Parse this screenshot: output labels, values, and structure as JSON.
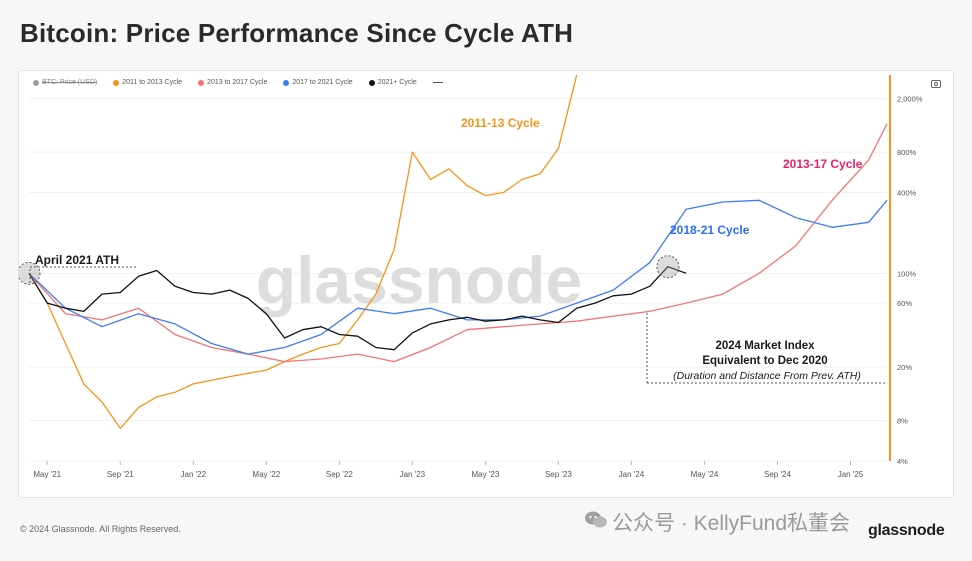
{
  "title": "Bitcoin: Price Performance Since Cycle ATH",
  "legend": [
    {
      "label": "BTC: Price (USD)",
      "color": "#9e9e9e",
      "muted": true
    },
    {
      "label": "2011 to 2013 Cycle",
      "color": "#f7931a"
    },
    {
      "label": "2013 to 2017 Cycle",
      "color": "#f57373"
    },
    {
      "label": "2017 to 2021 Cycle",
      "color": "#3d7cf5"
    },
    {
      "label": "2021+ Cycle",
      "color": "#111111"
    }
  ],
  "footer": {
    "copyright": "© 2024 Glassnode. All Rights Reserved.",
    "brand": "glassnode",
    "watermark_text": "公众号 · KellyFund私董会",
    "watermark_icon": "wechat-icon"
  },
  "chart_data": {
    "type": "line",
    "watermark": "glassnode",
    "x_axis": {
      "ticks": [
        "May '21",
        "Sep '21",
        "Jan '22",
        "May '22",
        "Sep '22",
        "Jan '23",
        "May '23",
        "Sep '23",
        "Jan '24",
        "May '24",
        "Sep '24",
        "Jan '25"
      ],
      "range": [
        "Apr '21",
        "Mar '25"
      ]
    },
    "y_axis": {
      "scale": "log",
      "unit": "%",
      "ticks": [
        "2,000%",
        "800%",
        "400%",
        "100%",
        "60%",
        "20%",
        "8%",
        "4%"
      ],
      "range": [
        4,
        3000
      ]
    },
    "annotations": {
      "ath": "April 2021 ATH",
      "market_index_line1": "2024 Market Index",
      "market_index_line2": "Equivalent to Dec 2020",
      "market_index_line3": "(Duration and Distance From Prev. ATH)",
      "cycle_2011": "2011-13 Cycle",
      "cycle_2013": "2013-17 Cycle",
      "cycle_2018": "2018-21 Cycle"
    },
    "grid": true,
    "legend_position": "top-left",
    "series": [
      {
        "name": "2011 to 2013 Cycle",
        "color": "#f7931a",
        "x": [
          "Apr '21",
          "May '21",
          "Jun '21",
          "Jul '21",
          "Aug '21",
          "Sep '21",
          "Oct '21",
          "Nov '21",
          "Dec '21",
          "Jan '22",
          "Feb '22",
          "Mar '22",
          "Apr '22",
          "May '22",
          "Jun '22",
          "Jul '22",
          "Aug '22",
          "Sep '22",
          "Oct '22",
          "Nov '22",
          "Dec '22",
          "Jan '23",
          "Feb '23",
          "Mar '23",
          "Apr '23",
          "May '23",
          "Jun '23",
          "Jul '23",
          "Aug '23",
          "Sep '23",
          "Oct '23"
        ],
        "values": [
          100,
          60,
          30,
          15,
          11,
          7,
          10,
          12,
          13,
          15,
          16,
          17,
          18,
          19,
          22,
          25,
          28,
          30,
          45,
          70,
          150,
          800,
          500,
          600,
          450,
          380,
          400,
          500,
          550,
          850,
          3000
        ]
      },
      {
        "name": "2013 to 2017 Cycle",
        "color": "#f57373",
        "x": [
          "Apr '21",
          "Jun '21",
          "Aug '21",
          "Oct '21",
          "Dec '21",
          "Feb '22",
          "Apr '22",
          "Jun '22",
          "Aug '22",
          "Oct '22",
          "Dec '22",
          "Feb '23",
          "Apr '23",
          "Jun '23",
          "Aug '23",
          "Oct '23",
          "Dec '23",
          "Feb '24",
          "Apr '24",
          "Jun '24",
          "Aug '24",
          "Oct '24",
          "Dec '24",
          "Feb '25",
          "Mar '25"
        ],
        "values": [
          100,
          50,
          45,
          55,
          35,
          28,
          25,
          22,
          23,
          25,
          22,
          28,
          38,
          40,
          42,
          44,
          48,
          52,
          60,
          70,
          100,
          160,
          350,
          700,
          1300
        ]
      },
      {
        "name": "2017 to 2021 Cycle",
        "color": "#3d7cf5",
        "x": [
          "Apr '21",
          "Jun '21",
          "Aug '21",
          "Oct '21",
          "Dec '21",
          "Feb '22",
          "Apr '22",
          "Jun '22",
          "Aug '22",
          "Oct '22",
          "Dec '22",
          "Feb '23",
          "Apr '23",
          "Jun '23",
          "Aug '23",
          "Oct '23",
          "Dec '23",
          "Feb '24",
          "Apr '24",
          "Jun '24",
          "Aug '24",
          "Oct '24",
          "Dec '24",
          "Feb '25",
          "Mar '25"
        ],
        "values": [
          100,
          55,
          40,
          50,
          42,
          30,
          25,
          28,
          35,
          55,
          50,
          55,
          45,
          45,
          48,
          60,
          75,
          120,
          300,
          340,
          350,
          260,
          220,
          240,
          350
        ]
      },
      {
        "name": "2021+ Cycle",
        "color": "#111111",
        "x": [
          "Apr '21",
          "May '21",
          "Jun '21",
          "Jul '21",
          "Aug '21",
          "Sep '21",
          "Oct '21",
          "Nov '21",
          "Dec '21",
          "Jan '22",
          "Feb '22",
          "Mar '22",
          "Apr '22",
          "May '22",
          "Jun '22",
          "Jul '22",
          "Aug '22",
          "Sep '22",
          "Oct '22",
          "Nov '22",
          "Dec '22",
          "Jan '23",
          "Feb '23",
          "Mar '23",
          "Apr '23",
          "May '23",
          "Jun '23",
          "Jul '23",
          "Aug '23",
          "Sep '23",
          "Oct '23",
          "Nov '23",
          "Dec '23",
          "Jan '24",
          "Feb '24",
          "Mar '24",
          "Apr '24"
        ],
        "values": [
          100,
          60,
          55,
          52,
          70,
          72,
          95,
          105,
          80,
          72,
          70,
          75,
          65,
          50,
          33,
          38,
          40,
          35,
          34,
          28,
          27,
          36,
          42,
          45,
          47,
          44,
          45,
          48,
          45,
          43,
          55,
          60,
          68,
          70,
          80,
          112,
          100
        ]
      }
    ]
  }
}
